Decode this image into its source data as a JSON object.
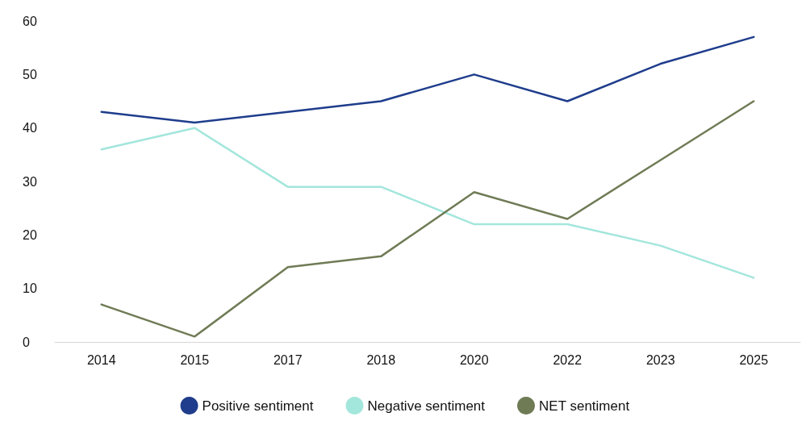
{
  "chart_data": {
    "type": "line",
    "categories": [
      "2014",
      "2015",
      "2017",
      "2018",
      "2020",
      "2022",
      "2023",
      "2025"
    ],
    "series": [
      {
        "name": "Positive sentiment",
        "color": "#1f3d8c",
        "values": [
          43,
          41,
          43,
          45,
          50,
          45,
          52,
          57
        ]
      },
      {
        "name": "Negative sentiment",
        "color": "#a3e6dc",
        "values": [
          36,
          40,
          29,
          29,
          22,
          22,
          18,
          12
        ]
      },
      {
        "name": "NET sentiment",
        "color": "#6f7b55",
        "values": [
          7,
          1,
          14,
          16,
          28,
          23,
          34,
          45
        ]
      }
    ],
    "ylim": [
      0,
      60
    ],
    "yticks": [
      0,
      10,
      20,
      30,
      40,
      50,
      60
    ],
    "grid": false,
    "legend": "bottom",
    "marker": "none",
    "line_style": "solid"
  }
}
